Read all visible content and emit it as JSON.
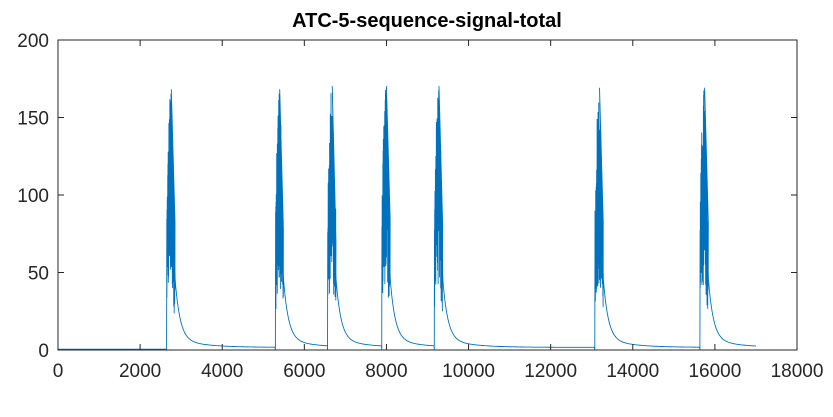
{
  "chart_data": {
    "type": "line",
    "title": "ATC-5-sequence-signal-total",
    "xlabel": "",
    "ylabel": "",
    "xlim": [
      0,
      18000
    ],
    "ylim": [
      0,
      200
    ],
    "xticks": [
      0,
      2000,
      4000,
      6000,
      8000,
      10000,
      12000,
      14000,
      16000,
      18000
    ],
    "yticks": [
      0,
      50,
      100,
      150,
      200
    ],
    "xtick_labels": [
      "0",
      "2000",
      "4000",
      "6000",
      "8000",
      "10000",
      "12000",
      "14000",
      "16000",
      "18000"
    ],
    "ytick_labels": [
      "0",
      "50",
      "100",
      "150",
      "200"
    ],
    "grid": false,
    "line_color": "#0072BD",
    "x_end": 17000,
    "baseline": 0.5,
    "peaks": [
      {
        "onset": 2650,
        "peak_x": 2760,
        "peak_y": 168,
        "decay_end": 5280
      },
      {
        "onset": 5300,
        "peak_x": 5400,
        "peak_y": 168,
        "decay_end": 6560
      },
      {
        "onset": 6570,
        "peak_x": 6680,
        "peak_y": 170,
        "decay_end": 7880
      },
      {
        "onset": 7890,
        "peak_x": 8000,
        "peak_y": 170,
        "decay_end": 9160
      },
      {
        "onset": 9170,
        "peak_x": 9280,
        "peak_y": 170,
        "decay_end": 13060
      },
      {
        "onset": 13080,
        "peak_x": 13190,
        "peak_y": 169,
        "decay_end": 15620
      },
      {
        "onset": 15640,
        "peak_x": 15750,
        "peak_y": 169,
        "decay_end": 17000
      }
    ]
  }
}
